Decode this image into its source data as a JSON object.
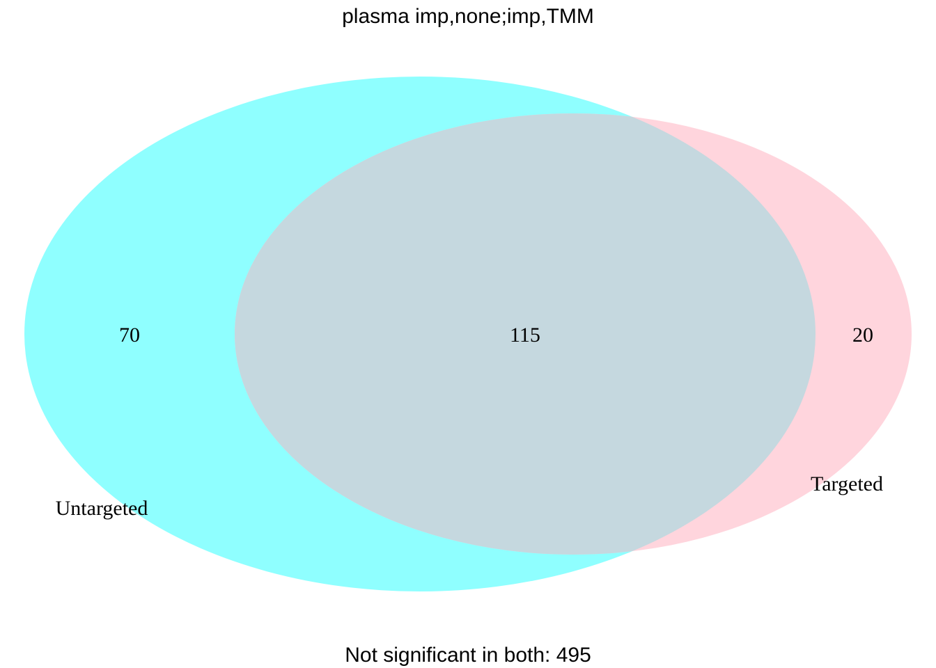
{
  "title": "plasma imp,none;imp,TMM",
  "sets": [
    {
      "label": "Untargeted",
      "color": "#8FFFFF"
    },
    {
      "label": "Targeted",
      "color": "#FFD5DD"
    }
  ],
  "overlap_color": "#C5D8DF",
  "counts": {
    "untargeted_only": "70",
    "both": "115",
    "targeted_only": "20"
  },
  "footer": "Not significant in both: 495"
}
